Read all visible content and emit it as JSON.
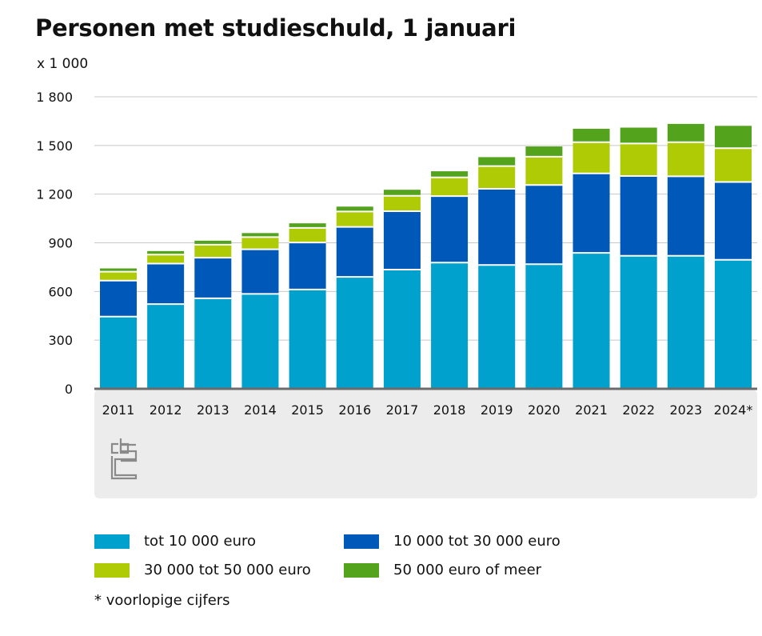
{
  "title": "Personen met studieschuld, 1 januari",
  "unit_label": "x 1 000",
  "footnote": "* voorlopige cijfers",
  "chart_data": {
    "type": "bar",
    "stacked": true,
    "categories": [
      "2011",
      "2012",
      "2013",
      "2014",
      "2015",
      "2016",
      "2017",
      "2018",
      "2019",
      "2020",
      "2021",
      "2022",
      "2023",
      "2024*"
    ],
    "ylim": [
      0,
      1800
    ],
    "yticks": [
      0,
      300,
      600,
      900,
      1200,
      1500,
      1800
    ],
    "ytick_labels": [
      "0",
      "300",
      "600",
      "900",
      "1 200",
      "1 500",
      "1 800"
    ],
    "grid": true,
    "legend_position": "bottom",
    "series": [
      {
        "name": "tot 10 000 euro",
        "color": "#00a1cd",
        "values": [
          445,
          522,
          558,
          585,
          612,
          690,
          735,
          778,
          763,
          768,
          838,
          820,
          820,
          795
        ]
      },
      {
        "name": "10 000 tot 30 000 euro",
        "color": "#0058b8",
        "values": [
          222,
          250,
          250,
          275,
          290,
          308,
          360,
          410,
          470,
          488,
          490,
          492,
          490,
          480
        ]
      },
      {
        "name": "30 000 tot 50 000 euro",
        "color": "#afcb05",
        "values": [
          55,
          55,
          80,
          75,
          90,
          95,
          95,
          115,
          140,
          175,
          192,
          200,
          210,
          208
        ]
      },
      {
        "name": "50 000 euro of meer",
        "color": "#53a31d",
        "values": [
          20,
          22,
          25,
          25,
          28,
          30,
          37,
          38,
          55,
          63,
          83,
          98,
          113,
          138
        ]
      }
    ]
  }
}
